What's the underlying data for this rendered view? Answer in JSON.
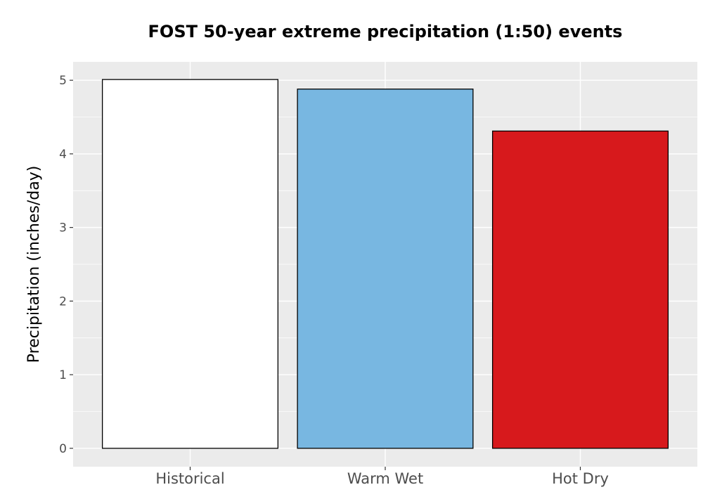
{
  "chart_data": {
    "type": "bar",
    "title": "FOST 50-year extreme precipitation (1:50) events",
    "xlabel": "",
    "ylabel": "Precipitation (inches/day)",
    "categories": [
      "Historical",
      "Warm Wet",
      "Hot Dry"
    ],
    "values": [
      5.01,
      4.88,
      4.31
    ],
    "colors": [
      "#ffffff",
      "#78b7e1",
      "#d7191c"
    ],
    "bar_edge_color": "#000000",
    "ylim": [
      -0.25,
      5.25
    ],
    "yticks": [
      0,
      1,
      2,
      3,
      4,
      5
    ],
    "grid": true,
    "panel_background": "#ebebeb",
    "grid_color": "#ffffff",
    "legend": "none"
  }
}
